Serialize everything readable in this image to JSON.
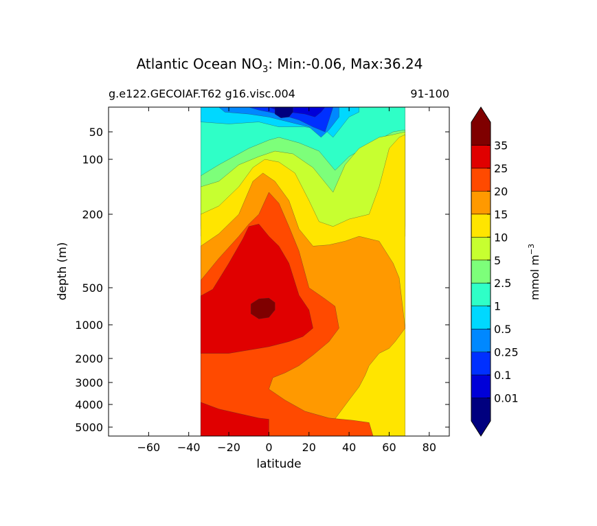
{
  "chart_data": {
    "type": "heatmap",
    "title": {
      "prefix": "Atlantic Ocean NO",
      "subscript": "3",
      "suffix": ": Min:-0.06, Max:36.24"
    },
    "subtitle_left": "g.e122.GECOIAF.T62 g16.visc.004",
    "subtitle_right": "91-100",
    "xlabel": "latitude",
    "ylabel": "depth (m)",
    "xlim": [
      -80,
      90
    ],
    "ylim": [
      5500,
      25
    ],
    "x_ticks": [
      -60,
      -40,
      -20,
      0,
      20,
      40,
      60,
      80
    ],
    "x_tick_labels": [
      "−60",
      "−40",
      "−20",
      "0",
      "20",
      "40",
      "60",
      "80"
    ],
    "y_ticks": [
      50,
      100,
      200,
      500,
      1000,
      2000,
      3000,
      4000,
      5000
    ],
    "y_tick_labels": [
      "50",
      "100",
      "200",
      "500",
      "1000",
      "2000",
      "3000",
      "4000",
      "5000"
    ],
    "colorbar": {
      "label_main": "mmol m",
      "label_sup": "−3",
      "extend": "both",
      "levels": [
        0.01,
        0.1,
        0.25,
        0.5,
        1,
        2.5,
        5,
        10,
        15,
        20,
        25,
        35
      ],
      "tick_labels": [
        "0.01",
        "0.1",
        "0.25",
        "0.5",
        "1",
        "2.5",
        "5",
        "10",
        "15",
        "20",
        "25",
        "35"
      ],
      "colors": [
        "#00007f",
        "#0000d8",
        "#0030ff",
        "#0088ff",
        "#00d8ff",
        "#2fffc7",
        "#7dff7a",
        "#c7ff30",
        "#ffe500",
        "#ff9900",
        "#ff4a00",
        "#e00000",
        "#7f0000"
      ],
      "under_color": "#00007f",
      "over_color": "#7f0000"
    },
    "contours": [
      {
        "band": 5,
        "fill": "#2fffc7",
        "points": [
          [
            -34,
            25
          ],
          [
            68,
            25
          ],
          [
            68,
            250
          ],
          [
            -34,
            250
          ]
        ]
      },
      {
        "band": 6,
        "fill": "#7dff7a",
        "points": [
          [
            -34,
            130
          ],
          [
            -25,
            110
          ],
          [
            -10,
            80
          ],
          [
            0,
            65
          ],
          [
            5,
            60
          ],
          [
            15,
            70
          ],
          [
            25,
            85
          ],
          [
            33,
            120
          ],
          [
            40,
            95
          ],
          [
            52,
            70
          ],
          [
            62,
            50
          ],
          [
            68,
            48
          ],
          [
            68,
            260
          ],
          [
            -34,
            260
          ]
        ]
      },
      {
        "band": 7,
        "fill": "#c7ff30",
        "points": [
          [
            -34,
            150
          ],
          [
            -25,
            140
          ],
          [
            -15,
            110
          ],
          [
            -5,
            95
          ],
          [
            3,
            85
          ],
          [
            12,
            90
          ],
          [
            22,
            115
          ],
          [
            32,
            160
          ],
          [
            38,
            110
          ],
          [
            45,
            80
          ],
          [
            55,
            60
          ],
          [
            62,
            55
          ],
          [
            68,
            50
          ],
          [
            68,
            290
          ],
          [
            -34,
            290
          ]
        ]
      },
      {
        "band": 8,
        "fill": "#ffe500",
        "points": [
          [
            -34,
            200
          ],
          [
            -25,
            185
          ],
          [
            -15,
            150
          ],
          [
            -8,
            115
          ],
          [
            -2,
            100
          ],
          [
            5,
            105
          ],
          [
            13,
            125
          ],
          [
            20,
            175
          ],
          [
            25,
            230
          ],
          [
            32,
            250
          ],
          [
            40,
            220
          ],
          [
            45,
            210
          ],
          [
            50,
            200
          ],
          [
            55,
            150
          ],
          [
            60,
            80
          ],
          [
            65,
            60
          ],
          [
            68,
            55
          ],
          [
            68,
            5500
          ],
          [
            -34,
            5500
          ]
        ]
      },
      {
        "band": 9,
        "fill": "#ff9900",
        "points": [
          [
            -34,
            330
          ],
          [
            -25,
            280
          ],
          [
            -15,
            200
          ],
          [
            -8,
            140
          ],
          [
            -3,
            125
          ],
          [
            3,
            140
          ],
          [
            10,
            175
          ],
          [
            15,
            260
          ],
          [
            22,
            330
          ],
          [
            30,
            325
          ],
          [
            38,
            310
          ],
          [
            45,
            290
          ],
          [
            55,
            310
          ],
          [
            62,
            400
          ],
          [
            65,
            460
          ],
          [
            68,
            1100
          ],
          [
            63,
            1500
          ],
          [
            60,
            1700
          ],
          [
            55,
            1850
          ],
          [
            50,
            2300
          ],
          [
            48,
            2700
          ],
          [
            45,
            3200
          ],
          [
            40,
            3800
          ],
          [
            35,
            4400
          ],
          [
            30,
            5000
          ],
          [
            25,
            5500
          ],
          [
            -34,
            5500
          ]
        ]
      },
      {
        "band": 10,
        "fill": "#ff4a00",
        "points": [
          [
            -34,
            470
          ],
          [
            -25,
            380
          ],
          [
            -15,
            290
          ],
          [
            -10,
            240
          ],
          [
            -5,
            200
          ],
          [
            0,
            160
          ],
          [
            5,
            180
          ],
          [
            10,
            250
          ],
          [
            15,
            350
          ],
          [
            20,
            500
          ],
          [
            28,
            650
          ],
          [
            33,
            750
          ],
          [
            35,
            1100
          ],
          [
            30,
            1500
          ],
          [
            22,
            1900
          ],
          [
            15,
            2300
          ],
          [
            8,
            2600
          ],
          [
            2,
            2800
          ],
          [
            0,
            3300
          ],
          [
            8,
            3800
          ],
          [
            18,
            4300
          ],
          [
            30,
            4600
          ],
          [
            42,
            4700
          ],
          [
            50,
            4800
          ],
          [
            52,
            5500
          ],
          [
            -34,
            5500
          ]
        ]
      },
      {
        "band": 11,
        "fill": "#e00000",
        "points": [
          [
            -34,
            610
          ],
          [
            -28,
            520
          ],
          [
            -20,
            400
          ],
          [
            -13,
            300
          ],
          [
            -10,
            250
          ],
          [
            -5,
            240
          ],
          [
            0,
            290
          ],
          [
            5,
            330
          ],
          [
            10,
            400
          ],
          [
            15,
            600
          ],
          [
            20,
            800
          ],
          [
            22,
            1100
          ],
          [
            17,
            1350
          ],
          [
            10,
            1500
          ],
          [
            0,
            1650
          ],
          [
            -10,
            1750
          ],
          [
            -20,
            1850
          ],
          [
            -30,
            1850
          ],
          [
            -34,
            1850
          ]
        ]
      },
      {
        "band": 11,
        "fill": "#e00000",
        "points": [
          [
            -34,
            3900
          ],
          [
            -25,
            4200
          ],
          [
            -15,
            4400
          ],
          [
            -5,
            4600
          ],
          [
            0,
            4650
          ],
          [
            0,
            5500
          ],
          [
            -34,
            5500
          ]
        ]
      },
      {
        "band": 12,
        "fill": "#7f0000",
        "points": [
          [
            -9,
            720
          ],
          [
            -5,
            650
          ],
          [
            0,
            640
          ],
          [
            3,
            700
          ],
          [
            3,
            800
          ],
          [
            0,
            900
          ],
          [
            -5,
            920
          ],
          [
            -9,
            850
          ]
        ]
      },
      {
        "band": 4,
        "fill": "#00d8ff",
        "points": [
          [
            -34,
            40
          ],
          [
            -20,
            42
          ],
          [
            -5,
            40
          ],
          [
            5,
            45
          ],
          [
            18,
            45
          ],
          [
            28,
            48
          ],
          [
            32,
            60
          ],
          [
            35,
            48
          ],
          [
            40,
            35
          ],
          [
            45,
            30
          ],
          [
            45,
            25
          ],
          [
            -34,
            25
          ]
        ]
      },
      {
        "band": 3,
        "fill": "#0088ff",
        "points": [
          [
            -25,
            25
          ],
          [
            -22,
            30
          ],
          [
            -10,
            32
          ],
          [
            0,
            35
          ],
          [
            10,
            40
          ],
          [
            20,
            45
          ],
          [
            26,
            60
          ],
          [
            30,
            48
          ],
          [
            35,
            35
          ],
          [
            35,
            25
          ]
        ]
      },
      {
        "band": 2,
        "fill": "#0030ff",
        "points": [
          [
            -10,
            25
          ],
          [
            -5,
            28
          ],
          [
            5,
            32
          ],
          [
            15,
            38
          ],
          [
            22,
            45
          ],
          [
            28,
            50
          ],
          [
            30,
            38
          ],
          [
            32,
            25
          ]
        ]
      },
      {
        "band": 1,
        "fill": "#0000d8",
        "points": [
          [
            0,
            25
          ],
          [
            4,
            28
          ],
          [
            10,
            30
          ],
          [
            18,
            32
          ],
          [
            23,
            35
          ],
          [
            26,
            30
          ],
          [
            28,
            25
          ]
        ]
      },
      {
        "band": 0,
        "fill": "#00007f",
        "points": [
          [
            3,
            25
          ],
          [
            3,
            32
          ],
          [
            6,
            36
          ],
          [
            10,
            35
          ],
          [
            12,
            30
          ],
          [
            12,
            25
          ]
        ]
      }
    ]
  }
}
